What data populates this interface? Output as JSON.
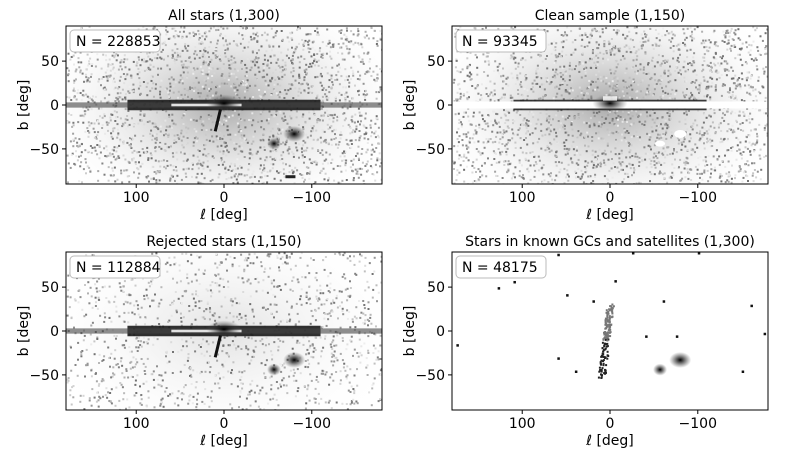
{
  "chart_data": [
    {
      "type": "heatmap",
      "title": "All stars (1,300)",
      "annotation": "N = 228853",
      "annotation_n": "228853",
      "xlabel": "ℓ [deg]",
      "ylabel": "b [deg]",
      "xlim": [
        180,
        -180
      ],
      "ylim": [
        -90,
        90
      ],
      "xticks": [
        100,
        0,
        -100
      ],
      "xtick_labels": [
        "100",
        "0",
        "−100"
      ],
      "yticks": [
        50,
        0,
        -50
      ],
      "ytick_labels": [
        "50",
        "0",
        "−50"
      ],
      "colormap": "Greys",
      "features": [
        "background-halo",
        "disk-band",
        "bulge",
        "sgr-stream",
        "lmc",
        "smc",
        "gaps"
      ]
    },
    {
      "type": "heatmap",
      "title": "Clean sample (1,150)",
      "annotation": "N = 93345",
      "annotation_n": "93345",
      "xlabel": "ℓ [deg]",
      "ylabel": "b [deg]",
      "xlim": [
        180,
        -180
      ],
      "ylim": [
        -90,
        90
      ],
      "xticks": [
        100,
        0,
        -100
      ],
      "xtick_labels": [
        "100",
        "0",
        "−100"
      ],
      "yticks": [
        50,
        0,
        -50
      ],
      "ytick_labels": [
        "50",
        "0",
        "−50"
      ],
      "colormap": "Greys",
      "features": [
        "background-halo",
        "disk-band",
        "bulge",
        "masked-plane",
        "masked-clouds"
      ]
    },
    {
      "type": "heatmap",
      "title": "Rejected stars (1,150)",
      "annotation": "N = 112884",
      "annotation_n": "112884",
      "xlabel": "ℓ [deg]",
      "ylabel": "b [deg]",
      "xlim": [
        180,
        -180
      ],
      "ylim": [
        -90,
        90
      ],
      "xticks": [
        100,
        0,
        -100
      ],
      "xtick_labels": [
        "100",
        "0",
        "−100"
      ],
      "yticks": [
        50,
        0,
        -50
      ],
      "ytick_labels": [
        "50",
        "0",
        "−50"
      ],
      "colormap": "Greys",
      "features": [
        "sparse-halo",
        "disk-band",
        "bulge",
        "sgr-stream",
        "lmc",
        "smc"
      ]
    },
    {
      "type": "heatmap",
      "title": "Stars in known GCs and satellites (1,300)",
      "annotation": "N = 48175",
      "annotation_n": "48175",
      "xlabel": "ℓ [deg]",
      "ylabel": "b [deg]",
      "xlim": [
        180,
        -180
      ],
      "ylim": [
        -90,
        90
      ],
      "xticks": [
        100,
        0,
        -100
      ],
      "xtick_labels": [
        "100",
        "0",
        "−100"
      ],
      "yticks": [
        50,
        0,
        -50
      ],
      "ytick_labels": [
        "50",
        "0",
        "−50"
      ],
      "colormap": "Greys",
      "features": [
        "sgr-stream",
        "lmc",
        "smc",
        "globular-clusters"
      ]
    }
  ]
}
